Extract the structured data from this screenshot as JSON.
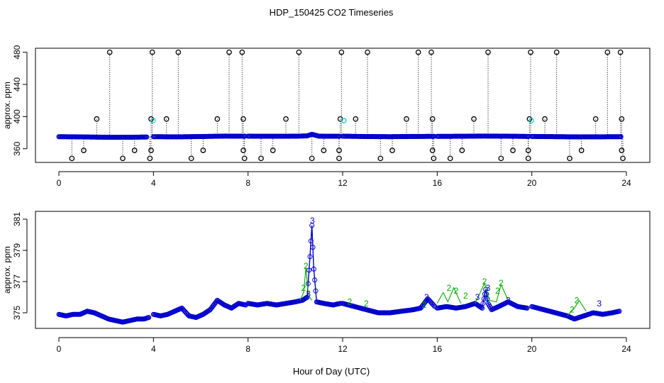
{
  "title": "HDP_150425  CO2 Timeseries",
  "xlabel": "Hour of Day (UTC)",
  "colors": {
    "axis": "#000000",
    "spike": "#000000",
    "series_blue": "#0000cc",
    "series_cyan": "#00c8c8",
    "series_green": "#00aa00"
  },
  "chart_data": [
    {
      "type": "scatter",
      "ylabel": "approx. ppm",
      "xlim": [
        0,
        24
      ],
      "ylim": [
        343,
        485
      ],
      "x_ticks": [
        "0",
        "4",
        "8",
        "12",
        "16",
        "20",
        "24"
      ],
      "y_ticks": [
        "360",
        "400",
        "440",
        "480"
      ],
      "y_tick_values": [
        360,
        400,
        440,
        480
      ],
      "baseline_segments": [
        {
          "x": [
            0.0,
            0.75,
            1.5,
            2.25,
            3.0,
            3.75
          ],
          "y": [
            375,
            374.8,
            374.5,
            374.2,
            374.3,
            374.6
          ],
          "color": "blue"
        },
        {
          "x": [
            4.0,
            5.0,
            6.0,
            7.0,
            7.9
          ],
          "y": [
            375.0,
            374.8,
            375.2,
            375.7,
            375.6
          ],
          "color": "blue"
        },
        {
          "x": [
            8.0,
            9.0,
            10.0,
            10.5,
            10.7,
            11.0,
            11.9
          ],
          "y": [
            375.6,
            375.5,
            375.6,
            376.0,
            378.0,
            375.6,
            375.5
          ],
          "color": "blue"
        },
        {
          "x": [
            12.0,
            13.0,
            14.0,
            15.0,
            15.9
          ],
          "y": [
            375.6,
            375.2,
            375.0,
            375.3,
            375.4
          ],
          "color": "blue"
        },
        {
          "x": [
            16.0,
            17.0,
            18.0,
            19.0,
            19.9
          ],
          "y": [
            375.4,
            375.5,
            375.8,
            375.6,
            375.3
          ],
          "color": "blue"
        },
        {
          "x": [
            20.0,
            21.0,
            22.0,
            23.0,
            23.8
          ],
          "y": [
            375.3,
            375.0,
            374.8,
            374.9,
            375.0
          ],
          "color": "blue"
        }
      ],
      "spikes": [
        {
          "x": 2.15,
          "y": 480
        },
        {
          "x": 3.95,
          "y": 480
        },
        {
          "x": 5.05,
          "y": 480
        },
        {
          "x": 7.2,
          "y": 480
        },
        {
          "x": 7.75,
          "y": 480
        },
        {
          "x": 10.15,
          "y": 480
        },
        {
          "x": 11.95,
          "y": 480
        },
        {
          "x": 13.05,
          "y": 480
        },
        {
          "x": 15.2,
          "y": 480
        },
        {
          "x": 15.75,
          "y": 480
        },
        {
          "x": 18.15,
          "y": 480
        },
        {
          "x": 19.95,
          "y": 480
        },
        {
          "x": 21.05,
          "y": 480
        },
        {
          "x": 23.2,
          "y": 480
        },
        {
          "x": 23.75,
          "y": 480
        },
        {
          "x": 1.6,
          "y": 397
        },
        {
          "x": 3.9,
          "y": 397
        },
        {
          "x": 4.55,
          "y": 397
        },
        {
          "x": 6.7,
          "y": 397
        },
        {
          "x": 7.8,
          "y": 397
        },
        {
          "x": 9.6,
          "y": 397
        },
        {
          "x": 11.9,
          "y": 397
        },
        {
          "x": 12.55,
          "y": 397
        },
        {
          "x": 14.7,
          "y": 397
        },
        {
          "x": 15.8,
          "y": 397
        },
        {
          "x": 17.55,
          "y": 397
        },
        {
          "x": 19.9,
          "y": 397
        },
        {
          "x": 20.55,
          "y": 397
        },
        {
          "x": 22.7,
          "y": 397
        },
        {
          "x": 23.8,
          "y": 397
        },
        {
          "x": 1.05,
          "y": 358
        },
        {
          "x": 3.2,
          "y": 358
        },
        {
          "x": 3.9,
          "y": 358
        },
        {
          "x": 6.1,
          "y": 358
        },
        {
          "x": 7.8,
          "y": 358
        },
        {
          "x": 9.05,
          "y": 358
        },
        {
          "x": 11.2,
          "y": 358
        },
        {
          "x": 11.85,
          "y": 358
        },
        {
          "x": 14.1,
          "y": 358
        },
        {
          "x": 15.8,
          "y": 358
        },
        {
          "x": 17.05,
          "y": 358
        },
        {
          "x": 19.2,
          "y": 358
        },
        {
          "x": 19.85,
          "y": 358
        },
        {
          "x": 22.1,
          "y": 358
        },
        {
          "x": 23.8,
          "y": 358
        },
        {
          "x": 0.55,
          "y": 348
        },
        {
          "x": 2.7,
          "y": 348
        },
        {
          "x": 3.85,
          "y": 348
        },
        {
          "x": 5.6,
          "y": 348
        },
        {
          "x": 7.85,
          "y": 348
        },
        {
          "x": 8.55,
          "y": 348
        },
        {
          "x": 10.7,
          "y": 348
        },
        {
          "x": 11.85,
          "y": 348
        },
        {
          "x": 13.6,
          "y": 348
        },
        {
          "x": 15.85,
          "y": 348
        },
        {
          "x": 16.55,
          "y": 348
        },
        {
          "x": 18.7,
          "y": 348
        },
        {
          "x": 19.85,
          "y": 348
        },
        {
          "x": 21.6,
          "y": 348
        },
        {
          "x": 23.85,
          "y": 348
        }
      ],
      "cyan_points": [
        {
          "x": 3.98,
          "y": 395
        },
        {
          "x": 12.05,
          "y": 395
        },
        {
          "x": 19.98,
          "y": 395
        }
      ]
    },
    {
      "type": "line",
      "ylabel": "approx. ppm",
      "xlim": [
        0,
        24
      ],
      "ylim": [
        374.0,
        381.5
      ],
      "x_ticks": [
        "0",
        "4",
        "8",
        "12",
        "16",
        "20",
        "24"
      ],
      "y_ticks": [
        "375",
        "377",
        "379",
        "381"
      ],
      "y_tick_values": [
        375,
        377,
        379,
        381
      ],
      "series": [
        {
          "color": "blue",
          "marker": "3",
          "segments": [
            {
              "x": [
                0.0,
                0.3,
                0.6,
                0.9,
                1.2,
                1.5,
                1.8,
                2.1,
                2.4,
                2.7,
                3.0,
                3.3,
                3.6,
                3.8
              ],
              "y": [
                374.9,
                374.8,
                374.9,
                374.9,
                375.1,
                375.0,
                374.8,
                374.6,
                374.5,
                374.4,
                374.5,
                374.6,
                374.6,
                374.7
              ]
            },
            {
              "x": [
                4.0,
                4.3,
                4.6,
                4.9,
                5.2,
                5.5,
                5.8,
                6.1,
                6.4,
                6.7,
                7.0,
                7.3,
                7.6,
                7.9
              ],
              "y": [
                374.9,
                374.8,
                374.9,
                375.1,
                375.3,
                374.8,
                374.7,
                374.9,
                375.2,
                375.8,
                375.5,
                375.3,
                375.6,
                375.5
              ]
            },
            {
              "x": [
                8.0,
                8.4,
                8.8,
                9.2,
                9.6,
                10.0,
                10.3,
                10.5,
                10.62,
                10.7,
                10.78,
                10.9,
                11.2,
                11.6,
                11.9
              ],
              "y": [
                375.6,
                375.5,
                375.6,
                375.5,
                375.6,
                375.7,
                375.8,
                376.0,
                378.6,
                380.6,
                377.8,
                375.7,
                375.6,
                375.5,
                375.6
              ]
            },
            {
              "x": [
                12.0,
                12.5,
                13.0,
                13.5,
                14.0,
                14.5,
                15.0,
                15.3,
                15.6,
                15.9
              ],
              "y": [
                375.6,
                375.4,
                375.2,
                375.0,
                375.0,
                375.1,
                375.2,
                375.3,
                375.9,
                375.4
              ]
            },
            {
              "x": [
                16.0,
                16.4,
                16.8,
                17.2,
                17.6,
                17.9,
                18.05,
                18.15,
                18.3,
                18.6,
                19.0,
                19.4,
                19.8
              ],
              "y": [
                375.3,
                375.4,
                375.3,
                375.4,
                375.6,
                375.3,
                376.5,
                375.6,
                375.2,
                375.4,
                375.7,
                375.4,
                375.3
              ]
            },
            {
              "x": [
                20.0,
                20.5,
                21.0,
                21.5,
                21.8,
                22.2,
                22.6,
                23.0,
                23.4,
                23.7
              ],
              "y": [
                375.4,
                375.2,
                375.0,
                374.8,
                374.6,
                374.8,
                375.0,
                374.9,
                375.0,
                375.1
              ]
            }
          ]
        },
        {
          "color": "green",
          "marker": "2",
          "segments": [
            {
              "x": [
                10.2,
                10.35,
                10.45,
                10.55,
                10.7
              ],
              "y": [
                375.8,
                376.3,
                377.9,
                376.1,
                375.8
              ]
            },
            {
              "x": [
                16.0,
                16.25,
                16.45,
                16.7,
                17.0
              ],
              "y": [
                375.6,
                376.3,
                375.7,
                376.6,
                375.6
              ]
            },
            {
              "x": [
                17.6,
                17.85,
                18.0,
                18.2,
                18.5,
                18.7,
                19.0
              ],
              "y": [
                375.6,
                376.4,
                376.9,
                375.8,
                375.7,
                376.8,
                375.8
              ]
            },
            {
              "x": [
                21.5,
                21.8,
                22.0,
                22.3
              ],
              "y": [
                374.8,
                375.3,
                375.8,
                375.1
              ]
            }
          ]
        }
      ],
      "labels": [
        {
          "text": "3",
          "x": 10.72,
          "y": 380.9,
          "color": "blue"
        },
        {
          "text": "3",
          "x": 10.55,
          "y": 376.2,
          "color": "blue"
        },
        {
          "text": "2",
          "x": 10.45,
          "y": 378.0,
          "color": "green"
        },
        {
          "text": "2",
          "x": 10.35,
          "y": 376.6,
          "color": "green"
        },
        {
          "text": "3",
          "x": 15.55,
          "y": 376.0,
          "color": "blue"
        },
        {
          "text": "2",
          "x": 15.45,
          "y": 375.5,
          "color": "green"
        },
        {
          "text": "2",
          "x": 16.5,
          "y": 376.6,
          "color": "green"
        },
        {
          "text": "2",
          "x": 16.8,
          "y": 376.4,
          "color": "green"
        },
        {
          "text": "2",
          "x": 17.2,
          "y": 376.1,
          "color": "green"
        },
        {
          "text": "3",
          "x": 17.7,
          "y": 376.0,
          "color": "blue"
        },
        {
          "text": "2",
          "x": 18.0,
          "y": 377.0,
          "color": "green"
        },
        {
          "text": "3",
          "x": 18.15,
          "y": 376.6,
          "color": "blue"
        },
        {
          "text": "2",
          "x": 18.55,
          "y": 376.4,
          "color": "green"
        },
        {
          "text": "2",
          "x": 18.7,
          "y": 376.9,
          "color": "green"
        },
        {
          "text": "3",
          "x": 19.0,
          "y": 375.8,
          "color": "blue"
        },
        {
          "text": "2",
          "x": 21.9,
          "y": 375.8,
          "color": "green"
        },
        {
          "text": "3",
          "x": 22.85,
          "y": 375.6,
          "color": "blue"
        },
        {
          "text": "2",
          "x": 21.7,
          "y": 375.2,
          "color": "green"
        },
        {
          "text": "2",
          "x": 12.3,
          "y": 375.7,
          "color": "green"
        },
        {
          "text": "2",
          "x": 13.0,
          "y": 375.6,
          "color": "green"
        }
      ]
    }
  ]
}
